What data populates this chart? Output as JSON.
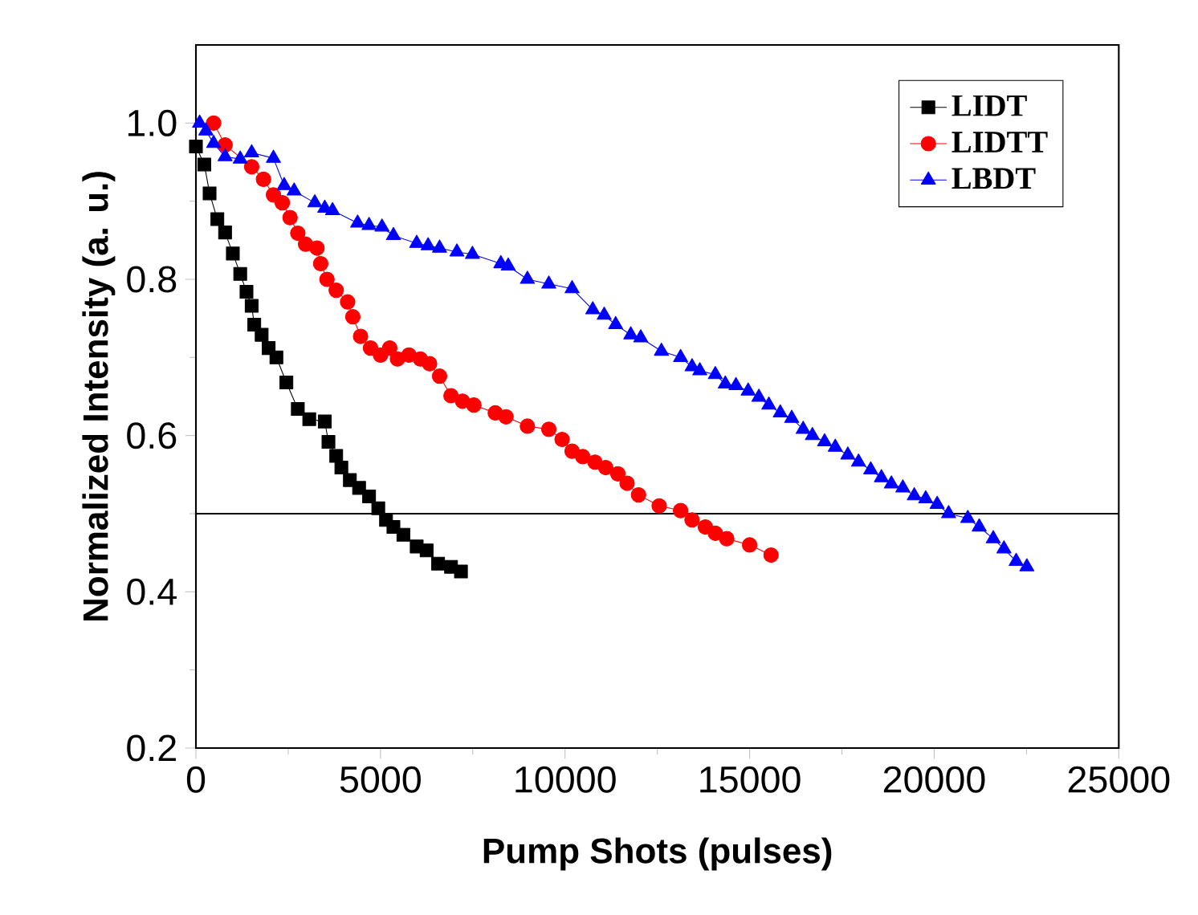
{
  "chart_data": {
    "type": "line",
    "xlabel": "Pump Shots (pulses)",
    "ylabel": "Normalized Intensity (a. u.)",
    "xlim": [
      0,
      25000
    ],
    "ylim": [
      0.2,
      1.1
    ],
    "xticks": [
      0,
      5000,
      10000,
      15000,
      20000,
      25000
    ],
    "yticks": [
      0.2,
      0.4,
      0.6,
      0.8,
      {
        "value": 1.0,
        "label": "1.0"
      }
    ],
    "grid": false,
    "legend": "top right",
    "line_style": "solid",
    "ref_lines": [
      {
        "axis": "y",
        "value": 0.5,
        "color": "#000000"
      }
    ],
    "series": [
      {
        "name": "LIDT",
        "color": "#000000",
        "marker": "square",
        "x": [
          0,
          228,
          370,
          580,
          790,
          1000,
          1200,
          1370,
          1510,
          1580,
          1780,
          1970,
          2180,
          2450,
          2760,
          3070,
          3490,
          3590,
          3800,
          3940,
          4170,
          4420,
          4690,
          4940,
          5150,
          5350,
          5620,
          5980,
          6250,
          6560,
          6910,
          7180
        ],
        "values": [
          0.97,
          0.947,
          0.91,
          0.877,
          0.86,
          0.833,
          0.807,
          0.784,
          0.766,
          0.742,
          0.729,
          0.712,
          0.7,
          0.668,
          0.634,
          0.621,
          0.618,
          0.592,
          0.574,
          0.559,
          0.543,
          0.533,
          0.522,
          0.507,
          0.492,
          0.483,
          0.473,
          0.458,
          0.453,
          0.436,
          0.432,
          0.426
        ]
      },
      {
        "name": "LIDTT",
        "color": "#ff0000",
        "marker": "circle",
        "x": [
          480,
          790,
          1510,
          1830,
          2100,
          2340,
          2550,
          2760,
          2970,
          3280,
          3380,
          3550,
          3800,
          4110,
          4250,
          4460,
          4730,
          5000,
          5250,
          5460,
          5770,
          6080,
          6330,
          6600,
          6910,
          7220,
          7530,
          8110,
          8400,
          8980,
          9560,
          9920,
          10190,
          10480,
          10810,
          11100,
          11430,
          11680,
          11990,
          12550,
          13130,
          13440,
          13800,
          14070,
          14380,
          15000,
          15580
        ],
        "values": [
          1.0,
          0.972,
          0.944,
          0.928,
          0.908,
          0.898,
          0.879,
          0.859,
          0.845,
          0.84,
          0.82,
          0.8,
          0.786,
          0.771,
          0.752,
          0.727,
          0.712,
          0.703,
          0.712,
          0.698,
          0.703,
          0.698,
          0.692,
          0.676,
          0.651,
          0.644,
          0.639,
          0.629,
          0.624,
          0.612,
          0.608,
          0.595,
          0.58,
          0.573,
          0.566,
          0.559,
          0.551,
          0.539,
          0.524,
          0.51,
          0.504,
          0.492,
          0.483,
          0.475,
          0.468,
          0.46,
          0.447
        ]
      },
      {
        "name": "LBDT",
        "color": "#0000ff",
        "marker": "triangle",
        "x": [
          100,
          270,
          480,
          790,
          1200,
          1510,
          2100,
          2390,
          2660,
          3220,
          3490,
          3700,
          4380,
          4690,
          5040,
          5350,
          5980,
          6290,
          6600,
          7070,
          7490,
          8260,
          8460,
          8980,
          9560,
          10190,
          10750,
          11060,
          11370,
          11780,
          12050,
          12610,
          13130,
          13440,
          13650,
          14070,
          14340,
          14630,
          14960,
          15250,
          15520,
          15830,
          16140,
          16450,
          16700,
          17030,
          17320,
          17660,
          17950,
          18280,
          18570,
          18840,
          19150,
          19460,
          19770,
          20080,
          20390,
          20910,
          21220,
          21600,
          21890,
          22220,
          22510
        ],
        "values": [
          1.0,
          0.99,
          0.974,
          0.957,
          0.954,
          0.962,
          0.955,
          0.92,
          0.913,
          0.898,
          0.891,
          0.888,
          0.872,
          0.869,
          0.867,
          0.856,
          0.846,
          0.843,
          0.84,
          0.835,
          0.832,
          0.82,
          0.817,
          0.8,
          0.794,
          0.788,
          0.761,
          0.754,
          0.742,
          0.729,
          0.725,
          0.708,
          0.7,
          0.688,
          0.683,
          0.678,
          0.666,
          0.664,
          0.657,
          0.649,
          0.639,
          0.629,
          0.622,
          0.608,
          0.6,
          0.592,
          0.585,
          0.575,
          0.566,
          0.556,
          0.546,
          0.538,
          0.533,
          0.523,
          0.519,
          0.512,
          0.5,
          0.494,
          0.483,
          0.468,
          0.455,
          0.439,
          0.432
        ]
      }
    ]
  }
}
